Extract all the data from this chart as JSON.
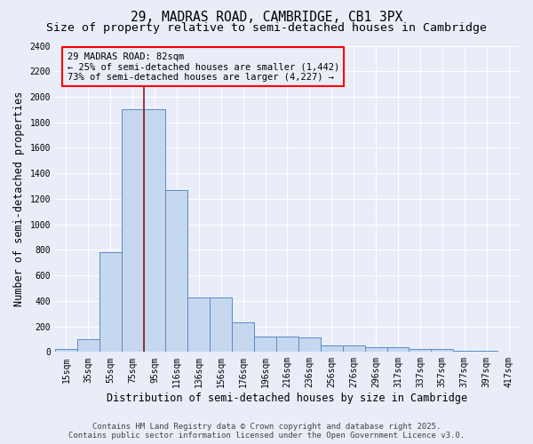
{
  "title": "29, MADRAS ROAD, CAMBRIDGE, CB1 3PX",
  "subtitle": "Size of property relative to semi-detached houses in Cambridge",
  "xlabel": "Distribution of semi-detached houses by size in Cambridge",
  "ylabel": "Number of semi-detached properties",
  "categories": [
    "15sqm",
    "35sqm",
    "55sqm",
    "75sqm",
    "95sqm",
    "116sqm",
    "136sqm",
    "156sqm",
    "176sqm",
    "196sqm",
    "216sqm",
    "236sqm",
    "256sqm",
    "276sqm",
    "296sqm",
    "317sqm",
    "337sqm",
    "357sqm",
    "377sqm",
    "397sqm",
    "417sqm"
  ],
  "values": [
    20,
    100,
    780,
    1900,
    1900,
    1270,
    430,
    430,
    230,
    120,
    120,
    115,
    50,
    50,
    35,
    35,
    20,
    20,
    10,
    10,
    5
  ],
  "bar_color": "#c5d8f0",
  "bar_edge_color": "#5b8ac5",
  "vline_x": 3.5,
  "vline_color": "#8b1a1a",
  "annotation_text": "29 MADRAS ROAD: 82sqm\n← 25% of semi-detached houses are smaller (1,442)\n73% of semi-detached houses are larger (4,227) →",
  "ylim": [
    0,
    2400
  ],
  "yticks": [
    0,
    200,
    400,
    600,
    800,
    1000,
    1200,
    1400,
    1600,
    1800,
    2000,
    2200,
    2400
  ],
  "bg_color": "#e8edf8",
  "grid_color": "#ffffff",
  "footer_line1": "Contains HM Land Registry data © Crown copyright and database right 2025.",
  "footer_line2": "Contains public sector information licensed under the Open Government Licence v3.0.",
  "title_fontsize": 10.5,
  "subtitle_fontsize": 9.5,
  "axis_label_fontsize": 8.5,
  "tick_fontsize": 7,
  "annotation_fontsize": 7.5,
  "footer_fontsize": 6.5
}
